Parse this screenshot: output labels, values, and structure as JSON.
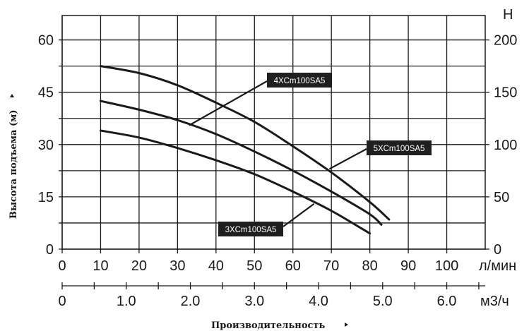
{
  "chart_data": {
    "type": "line",
    "title": "",
    "xlabel": "Производительность",
    "ylabel": "Высота подъема (м)",
    "x_unit": "л/мин",
    "x2_unit": "м3/ч",
    "y2_unit": "H",
    "xlim": [
      0,
      110
    ],
    "ylim": [
      0,
      67
    ],
    "grid": true,
    "x_ticks": [
      "0",
      "10",
      "20",
      "30",
      "40",
      "50",
      "60",
      "70",
      "80",
      "90",
      "100"
    ],
    "x2_ticks": [
      "0",
      "1.0",
      "2.0",
      "3.0",
      "4.0",
      "5.0",
      "6.0"
    ],
    "y_ticks": [
      "0",
      "15",
      "30",
      "45",
      "60"
    ],
    "y2_ticks": [
      "0",
      "50",
      "100",
      "150",
      "200"
    ],
    "series": [
      {
        "name": "4XCm100SA5",
        "x": [
          10,
          20,
          30,
          40,
          50,
          60,
          70,
          80,
          85
        ],
        "y": [
          52.5,
          50.5,
          47,
          42,
          36.5,
          29.5,
          22,
          13.5,
          8.5
        ]
      },
      {
        "name": "5XCm100SA5",
        "x": [
          10,
          20,
          30,
          40,
          50,
          60,
          70,
          80,
          83
        ],
        "y": [
          42.5,
          40,
          37,
          33,
          28,
          22.5,
          16.5,
          10,
          7
        ]
      },
      {
        "name": "3XCm100SA5",
        "x": [
          10,
          20,
          30,
          40,
          50,
          60,
          70,
          80
        ],
        "y": [
          34,
          32,
          29,
          25.5,
          21.5,
          16.5,
          11,
          4.5
        ]
      }
    ]
  }
}
